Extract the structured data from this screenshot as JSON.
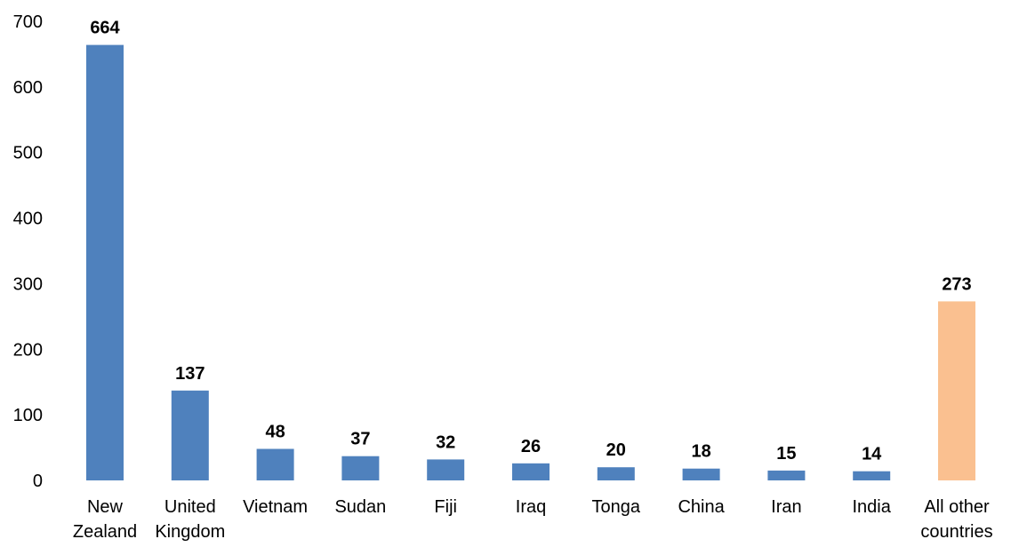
{
  "chart_data": {
    "type": "bar",
    "title": "",
    "xlabel": "",
    "ylabel": "",
    "ylim": [
      0,
      700
    ],
    "yticks": [
      0,
      100,
      200,
      300,
      400,
      500,
      600,
      700
    ],
    "grid": false,
    "legend": "none",
    "categories": [
      [
        "New",
        "Zealand"
      ],
      [
        "United",
        "Kingdom"
      ],
      [
        "Vietnam"
      ],
      [
        "Sudan"
      ],
      [
        "Fiji"
      ],
      [
        "Iraq"
      ],
      [
        "Tonga"
      ],
      [
        "China"
      ],
      [
        "Iran"
      ],
      [
        "India"
      ],
      [
        "All other",
        "countries"
      ]
    ],
    "values": [
      664,
      137,
      48,
      37,
      32,
      26,
      20,
      18,
      15,
      14,
      273
    ],
    "value_labels": [
      "664",
      "137",
      "48",
      "37",
      "32",
      "26",
      "20",
      "18",
      "15",
      "14",
      "273"
    ],
    "colors": {
      "primary": "#4F81BD",
      "highlight": "#FAC090"
    },
    "highlight_index": 10
  }
}
